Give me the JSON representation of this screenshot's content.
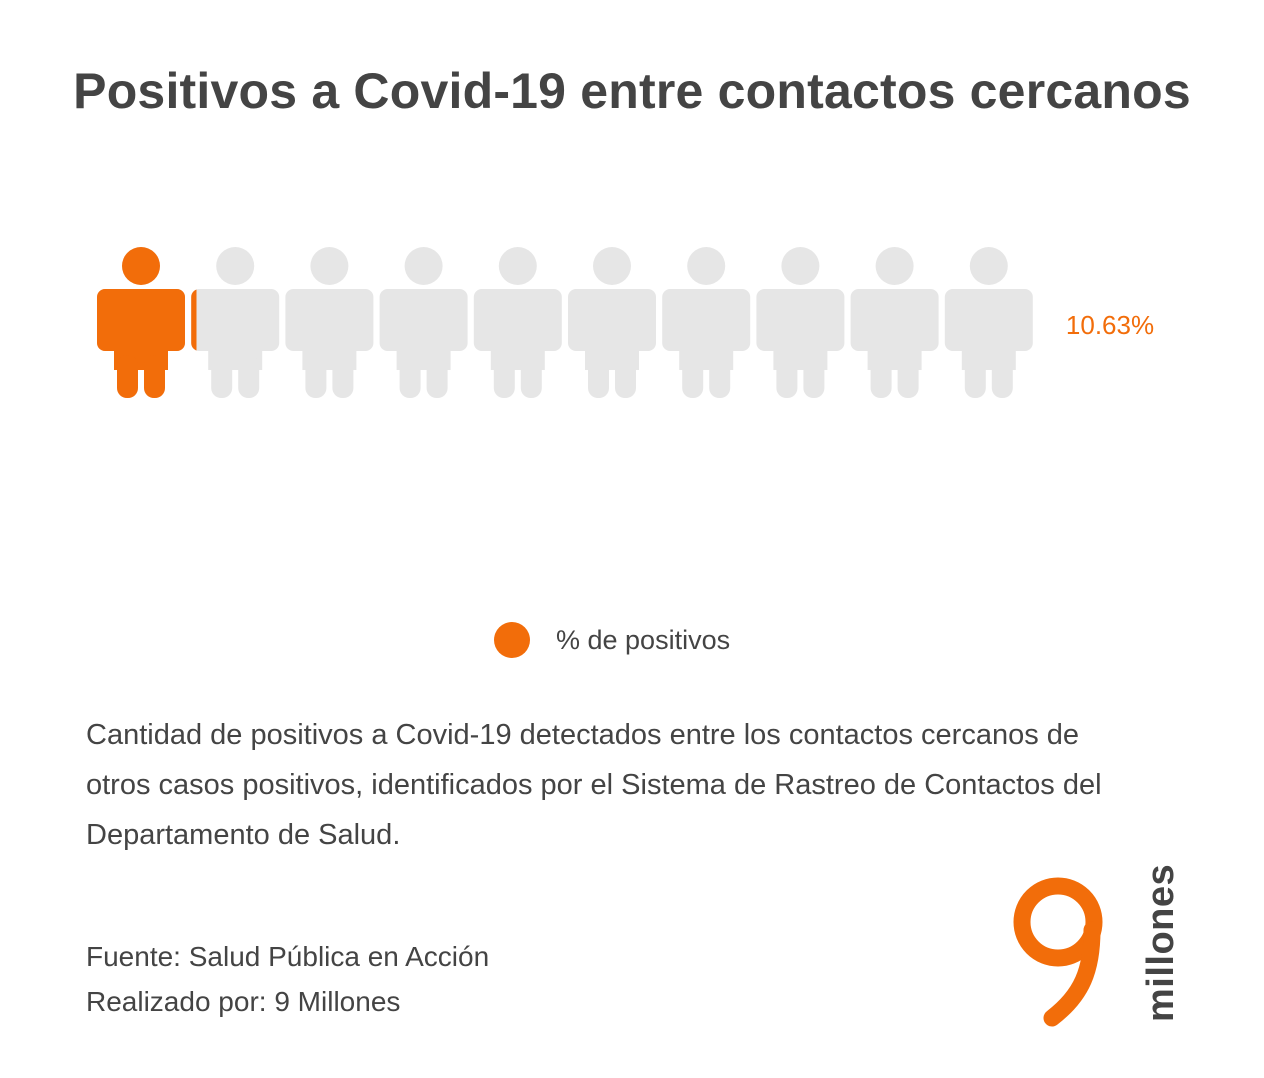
{
  "title": "Positivos a Covid-19 entre contactos cercanos",
  "chart_data": {
    "type": "pictogram",
    "icon": "person-icon",
    "icon_count": 10,
    "value_percent": 10.63,
    "value_label": "10.63%",
    "filled_color": "#f26d0a",
    "empty_color": "#e6e6e6",
    "legend": [
      {
        "label": "% de positivos",
        "color": "#f26d0a"
      }
    ]
  },
  "description": "Cantidad de positivos a Covid-19 detectados entre los contactos cercanos de otros casos positivos, identificados por el Sistema de Rastreo de Contactos del Departamento de Salud.",
  "credits": {
    "source": "Fuente: Salud Pública en Acción",
    "author": "Realizado por: 9 Millones"
  },
  "logo": {
    "numeral": "9",
    "word": "millones",
    "color": "#f26d0a"
  }
}
